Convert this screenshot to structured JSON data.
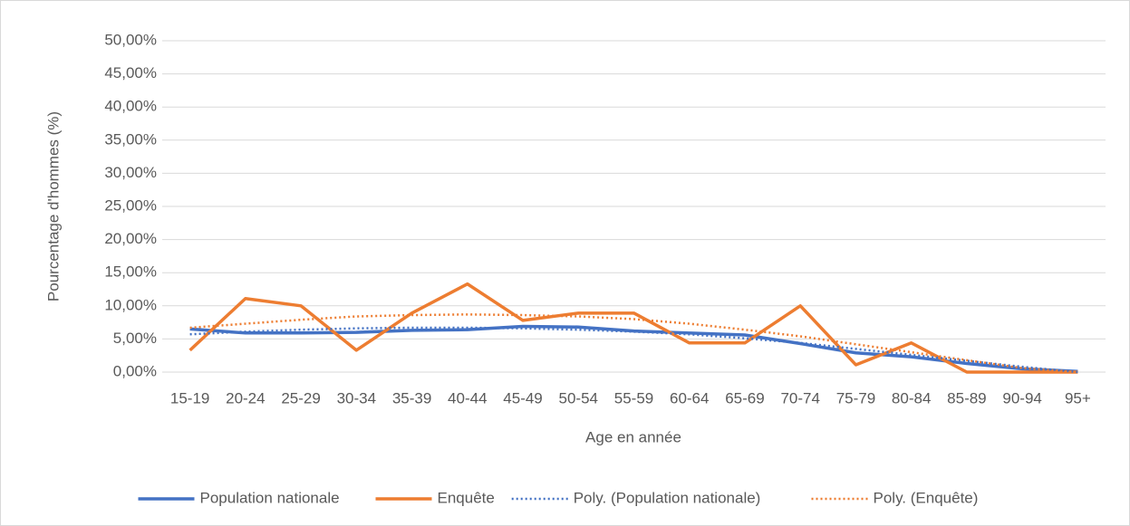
{
  "chart_data": {
    "type": "line",
    "x_label": "Age en année",
    "y_label": "Pourcentage d'hommes (%)",
    "categories": [
      "15-19",
      "20-24",
      "25-29",
      "30-34",
      "35-39",
      "40-44",
      "45-49",
      "50-54",
      "55-59",
      "60-64",
      "65-69",
      "70-74",
      "75-79",
      "80-84",
      "85-89",
      "90-94",
      "95+"
    ],
    "series": [
      {
        "name": "Population nationale",
        "color": "#4472c4",
        "line_style": "solid",
        "values": [
          6.5,
          5.9,
          5.9,
          6.0,
          6.3,
          6.4,
          6.9,
          6.8,
          6.2,
          5.9,
          5.6,
          4.3,
          2.9,
          2.3,
          1.3,
          0.5,
          0.1
        ]
      },
      {
        "name": "Enquête",
        "color": "#ed7d31",
        "line_style": "solid",
        "values": [
          3.3,
          11.1,
          10.0,
          3.3,
          8.9,
          13.3,
          7.8,
          8.9,
          8.9,
          4.4,
          4.4,
          10.0,
          1.1,
          4.4,
          0,
          0,
          0
        ]
      },
      {
        "name": "Poly. (Population nationale)",
        "color": "#4472c4",
        "line_style": "dotted",
        "values": [
          5.7,
          6.1,
          6.4,
          6.6,
          6.7,
          6.7,
          6.6,
          6.4,
          6.1,
          5.7,
          5.1,
          4.4,
          3.5,
          2.6,
          1.7,
          0.8,
          0.0
        ]
      },
      {
        "name": "Poly. (Enquête)",
        "color": "#ed7d31",
        "line_style": "dotted",
        "values": [
          6.7,
          7.3,
          7.9,
          8.4,
          8.6,
          8.7,
          8.6,
          8.4,
          8.0,
          7.3,
          6.4,
          5.4,
          4.2,
          3.0,
          1.8,
          0.6,
          0.0
        ]
      }
    ],
    "ylim": [
      0,
      50
    ],
    "yticks": [
      {
        "value": 0,
        "label": "0,00%"
      },
      {
        "value": 5,
        "label": "5,00%"
      },
      {
        "value": 10,
        "label": "10,00%"
      },
      {
        "value": 15,
        "label": "15,00%"
      },
      {
        "value": 20,
        "label": "20,00%"
      },
      {
        "value": 25,
        "label": "25,00%"
      },
      {
        "value": 30,
        "label": "30,00%"
      },
      {
        "value": 35,
        "label": "35,00%"
      },
      {
        "value": 40,
        "label": "40,00%"
      },
      {
        "value": 45,
        "label": "45,00%"
      },
      {
        "value": 50,
        "label": "50,00%"
      }
    ],
    "grid": true,
    "legend": "bottom"
  }
}
